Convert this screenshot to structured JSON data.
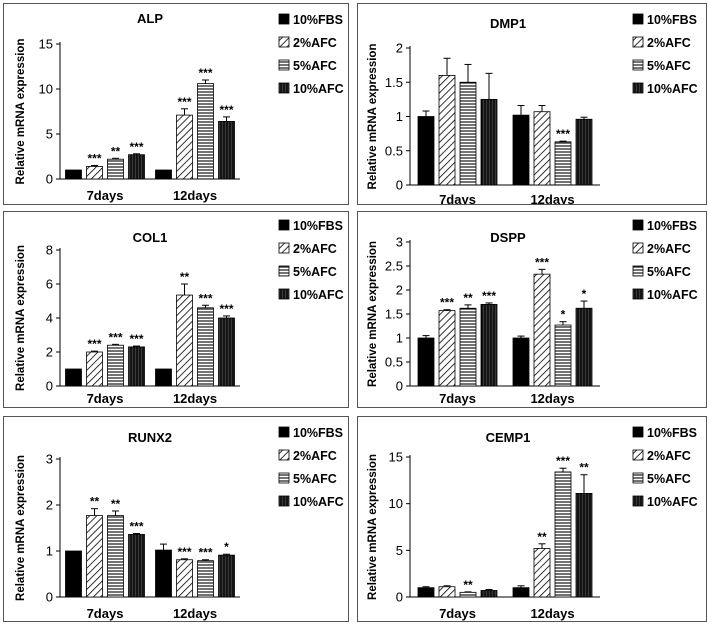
{
  "chart_data": [
    {
      "type": "bar",
      "title": "ALP",
      "ylabel": "Relative mRNA expression",
      "ylim": [
        0,
        15
      ],
      "yticks": [
        "0",
        "5",
        "10",
        "15"
      ],
      "categories": [
        "7days",
        "12days"
      ],
      "series": [
        {
          "name": "10%FBS",
          "values": [
            1,
            1
          ],
          "errors": [
            0,
            0
          ],
          "sig": [
            "",
            ""
          ]
        },
        {
          "name": "2%AFC",
          "values": [
            1.4,
            7.1
          ],
          "errors": [
            0.1,
            0.7
          ],
          "sig": [
            "***",
            "***"
          ]
        },
        {
          "name": "5%AFC",
          "values": [
            2.2,
            10.6
          ],
          "errors": [
            0.1,
            0.4
          ],
          "sig": [
            "**",
            "***"
          ]
        },
        {
          "name": "10%AFC",
          "values": [
            2.7,
            6.4
          ],
          "errors": [
            0.1,
            0.5
          ],
          "sig": [
            "***",
            "***"
          ]
        }
      ]
    },
    {
      "type": "bar",
      "title": "DMP1",
      "ylabel": "Relative mRNA expression",
      "ylim": [
        0,
        2
      ],
      "yticks": [
        "0",
        "0.5",
        "1",
        "1.5",
        "2"
      ],
      "categories": [
        "7days",
        "12days"
      ],
      "series": [
        {
          "name": "10%FBS",
          "values": [
            1.0,
            1.02
          ],
          "errors": [
            0.08,
            0.14
          ],
          "sig": [
            "",
            ""
          ]
        },
        {
          "name": "2%AFC",
          "values": [
            1.6,
            1.07
          ],
          "errors": [
            0.25,
            0.09
          ],
          "sig": [
            "",
            ""
          ]
        },
        {
          "name": "5%AFC",
          "values": [
            1.5,
            0.63
          ],
          "errors": [
            0.26,
            0.01
          ],
          "sig": [
            "",
            "***"
          ]
        },
        {
          "name": "10%AFC",
          "values": [
            1.25,
            0.96
          ],
          "errors": [
            0.38,
            0.03
          ],
          "sig": [
            "",
            ""
          ]
        }
      ]
    },
    {
      "type": "bar",
      "title": "COL1",
      "ylabel": "Relative mRNA expression",
      "ylim": [
        0,
        8
      ],
      "yticks": [
        "0",
        "2",
        "4",
        "6",
        "8"
      ],
      "categories": [
        "7days",
        "12days"
      ],
      "series": [
        {
          "name": "10%FBS",
          "values": [
            1,
            1
          ],
          "errors": [
            0,
            0
          ],
          "sig": [
            "",
            ""
          ]
        },
        {
          "name": "2%AFC",
          "values": [
            2.0,
            5.35
          ],
          "errors": [
            0.05,
            0.65
          ],
          "sig": [
            "***",
            "**"
          ]
        },
        {
          "name": "5%AFC",
          "values": [
            2.4,
            4.6
          ],
          "errors": [
            0.05,
            0.15
          ],
          "sig": [
            "***",
            "***"
          ]
        },
        {
          "name": "10%AFC",
          "values": [
            2.3,
            4.0
          ],
          "errors": [
            0.05,
            0.12
          ],
          "sig": [
            "***",
            "***"
          ]
        }
      ]
    },
    {
      "type": "bar",
      "title": "DSPP",
      "ylabel": "Relative mRNA expression",
      "ylim": [
        0,
        3
      ],
      "yticks": [
        "0",
        "0.5",
        "1",
        "1.5",
        "2",
        "2.5",
        "3"
      ],
      "categories": [
        "7days",
        "12days"
      ],
      "series": [
        {
          "name": "10%FBS",
          "values": [
            1.0,
            1.0
          ],
          "errors": [
            0.05,
            0.04
          ],
          "sig": [
            "",
            ""
          ]
        },
        {
          "name": "2%AFC",
          "values": [
            1.57,
            2.33
          ],
          "errors": [
            0.02,
            0.1
          ],
          "sig": [
            "***",
            "***"
          ]
        },
        {
          "name": "5%AFC",
          "values": [
            1.62,
            1.27
          ],
          "errors": [
            0.07,
            0.07
          ],
          "sig": [
            "**",
            "*"
          ]
        },
        {
          "name": "10%AFC",
          "values": [
            1.7,
            1.62
          ],
          "errors": [
            0.03,
            0.15
          ],
          "sig": [
            "***",
            "*"
          ]
        }
      ]
    },
    {
      "type": "bar",
      "title": "RUNX2",
      "ylabel": "Relative mRNA expression",
      "ylim": [
        0,
        3
      ],
      "yticks": [
        "0",
        "1",
        "2",
        "3"
      ],
      "categories": [
        "7days",
        "12days"
      ],
      "series": [
        {
          "name": "10%FBS",
          "values": [
            1.0,
            1.02
          ],
          "errors": [
            0,
            0.13
          ],
          "sig": [
            "",
            ""
          ]
        },
        {
          "name": "2%AFC",
          "values": [
            1.77,
            0.81
          ],
          "errors": [
            0.15,
            0.02
          ],
          "sig": [
            "**",
            "***"
          ]
        },
        {
          "name": "5%AFC",
          "values": [
            1.77,
            0.79
          ],
          "errors": [
            0.1,
            0.02
          ],
          "sig": [
            "**",
            "***"
          ]
        },
        {
          "name": "10%AFC",
          "values": [
            1.36,
            0.91
          ],
          "errors": [
            0.02,
            0.02
          ],
          "sig": [
            "***",
            "*"
          ]
        }
      ]
    },
    {
      "type": "bar",
      "title": "CEMP1",
      "ylabel": "Relative mRNA expression",
      "ylim": [
        0,
        15
      ],
      "yticks": [
        "0",
        "5",
        "10",
        "15"
      ],
      "categories": [
        "7days",
        "12days"
      ],
      "series": [
        {
          "name": "10%FBS",
          "values": [
            1.0,
            1.0
          ],
          "errors": [
            0.1,
            0.2
          ],
          "sig": [
            "",
            ""
          ]
        },
        {
          "name": "2%AFC",
          "values": [
            1.1,
            5.2
          ],
          "errors": [
            0.1,
            0.5
          ],
          "sig": [
            "",
            "**"
          ]
        },
        {
          "name": "5%AFC",
          "values": [
            0.5,
            13.4
          ],
          "errors": [
            0.05,
            0.4
          ],
          "sig": [
            "**",
            "***"
          ]
        },
        {
          "name": "10%AFC",
          "values": [
            0.7,
            11.1
          ],
          "errors": [
            0.1,
            2.0
          ],
          "sig": [
            "",
            "**"
          ]
        }
      ]
    }
  ],
  "legend_labels": [
    "10%FBS",
    "2%AFC",
    "5%AFC",
    "10%AFC"
  ],
  "colors": {
    "bar_stroke": "#000000",
    "solid_fill": "#000000",
    "frame": "#555555"
  }
}
